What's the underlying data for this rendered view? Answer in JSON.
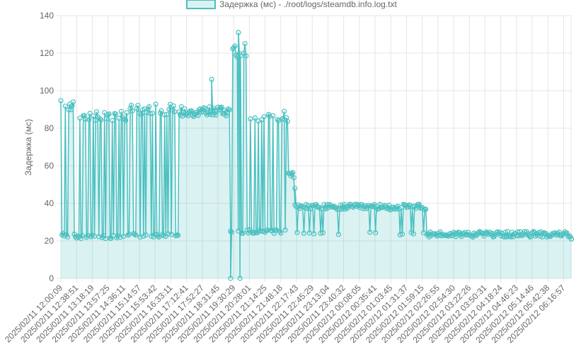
{
  "chart_data": {
    "type": "line",
    "title": "",
    "legend": {
      "position": "top",
      "label": "Задержка (мс) - ./root/logs/steamdb.info.log.txt"
    },
    "ylabel": "Задержка (мс)",
    "xlabel": "",
    "ylim": [
      0,
      140
    ],
    "yticks": [
      0,
      20,
      40,
      60,
      80,
      100,
      120,
      140
    ],
    "grid": true,
    "colors": {
      "line": "#4bc0c0",
      "fill": "#4bc0c033",
      "grid": "#e5e5e5",
      "text": "#666666"
    },
    "x_tick_labels": [
      "2025/02/11 12:00:09",
      "2025/02/11 12:38:51",
      "2025/02/11 13:18:19",
      "2025/02/11 13:57:25",
      "2025/02/11 14:36:11",
      "2025/02/11 15:14:57",
      "2025/02/11 15:53:42",
      "2025/02/11 16:33:11",
      "2025/02/11 17:12:41",
      "2025/02/11 17:52:27",
      "2025/02/11 18:31:45",
      "2025/02/11 19:30:29",
      "2025/02/11 20:28:01",
      "2025/02/11 21:14:25",
      "2025/02/11 21:48:18",
      "2025/02/11 22:17:43",
      "2025/02/11 22:45:29",
      "2025/02/11 23:13:04",
      "2025/02/11 23:40:32",
      "2025/02/12 00:08:05",
      "2025/02/12 00:35:41",
      "2025/02/12 01:03:45",
      "2025/02/12 01:31:37",
      "2025/02/12 01:59:15",
      "2025/02/12 02:26:55",
      "2025/02/12 02:54:30",
      "2025/02/12 03:22:26",
      "2025/02/12 03:50:31",
      "2025/02/12 04:18:24",
      "2025/02/12 04:46:23",
      "2025/02/12 05:14:46",
      "2025/02/12 05:42:38",
      "2025/02/12 06:16:57"
    ],
    "series": [
      {
        "name": "Задержка (мс) - ./root/logs/steamdb.info.log.txt",
        "segments": [
          {
            "from_tick": 0,
            "to_tick": 1.0,
            "base": 92,
            "spikes_to": 22
          },
          {
            "from_tick": 1.0,
            "to_tick": 4.2,
            "base": 86,
            "spikes_to": 21
          },
          {
            "from_tick": 4.2,
            "to_tick": 7.6,
            "base": 90,
            "spikes_to": 22
          },
          {
            "from_tick": 7.6,
            "to_tick": 10.8,
            "base": 89,
            "spikes_to": 86
          },
          {
            "from_tick": 10.8,
            "to_tick": 12.0,
            "base": 123,
            "spikes_to": 24
          },
          {
            "from_tick": 12.0,
            "to_tick": 14.5,
            "base": 86,
            "spikes_to": 24
          },
          {
            "from_tick": 14.5,
            "to_tick": 14.9,
            "base": 55,
            "spikes_to": 24
          },
          {
            "from_tick": 14.9,
            "to_tick": 23.3,
            "base": 38,
            "spikes_to": 23
          },
          {
            "from_tick": 23.3,
            "to_tick": 32.5,
            "base": 23.5,
            "spikes_to": 22
          }
        ],
        "notable_points": [
          {
            "x_tick": 9.6,
            "y": 106
          },
          {
            "x_tick": 10.8,
            "y": 0
          },
          {
            "x_tick": 11.4,
            "y": 0
          },
          {
            "x_tick": 11.3,
            "y": 131
          },
          {
            "x_tick": 14.9,
            "y": 48
          },
          {
            "x_tick": 32.5,
            "y": 21
          }
        ]
      }
    ]
  }
}
